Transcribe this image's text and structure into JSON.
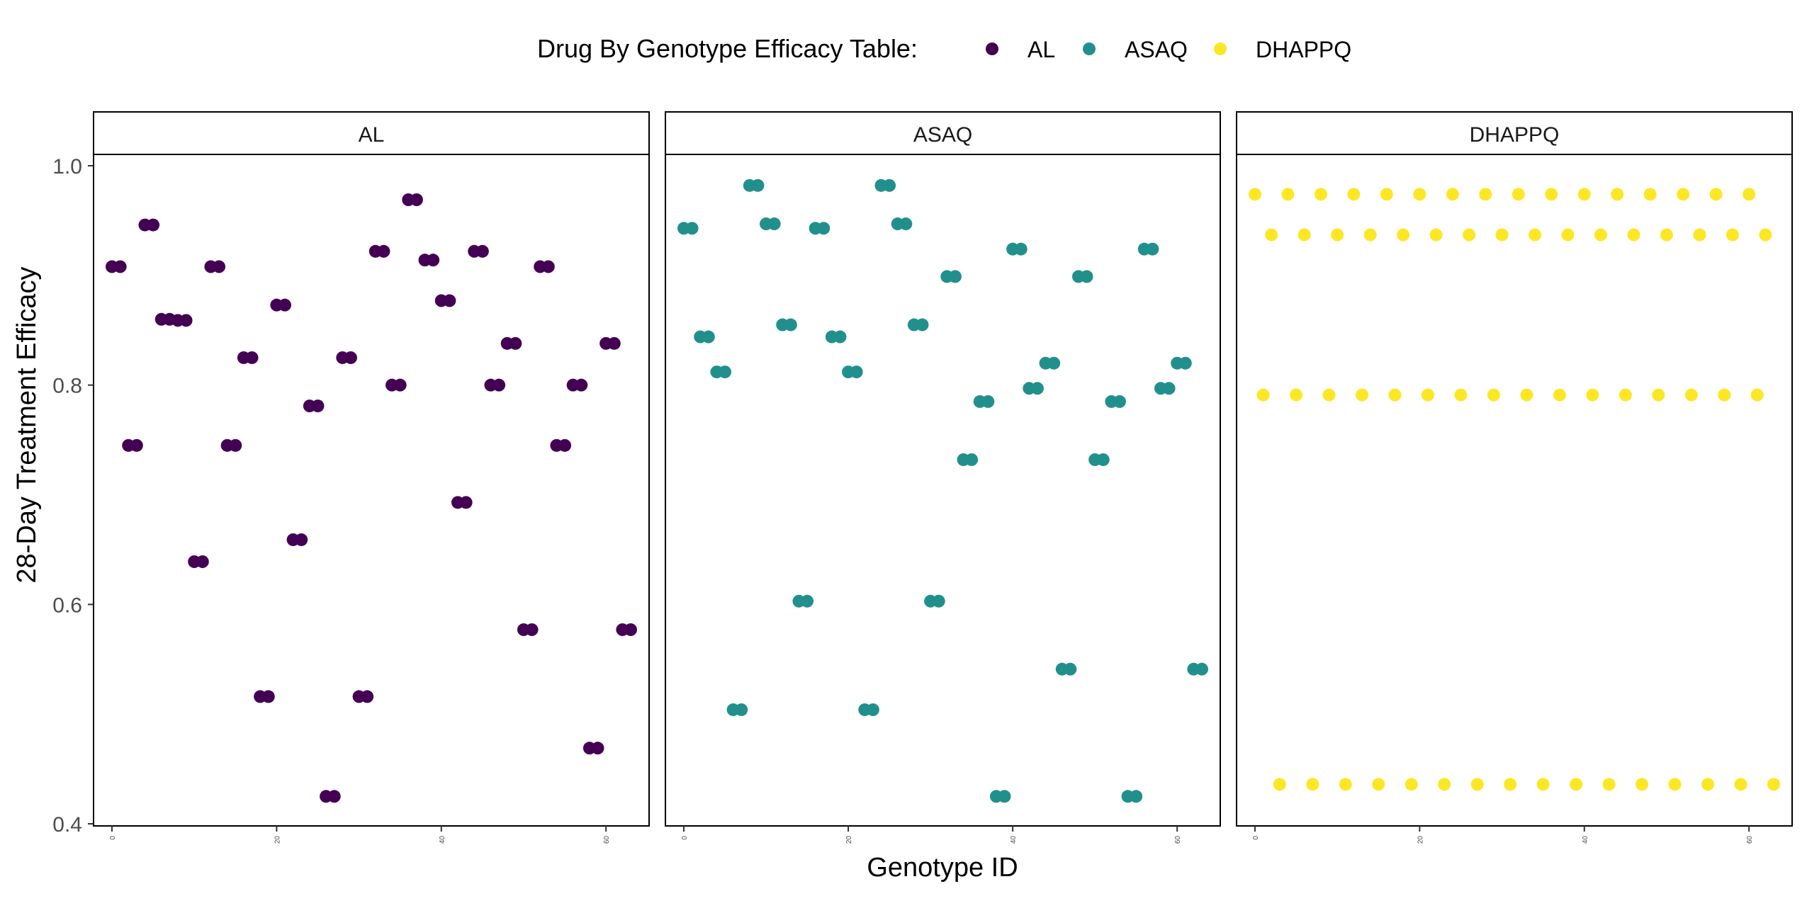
{
  "chart_data": {
    "type": "scatter",
    "title": "",
    "xlabel": "Genotype ID",
    "ylabel": "28-Day Treatment Efficacy",
    "legend": {
      "title": "Drug By Genotype Efficacy Table:",
      "position": "top",
      "entries": [
        {
          "name": "AL",
          "color": "#440154"
        },
        {
          "name": "ASAQ",
          "color": "#21908C"
        },
        {
          "name": "DHAPPQ",
          "color": "#FDE725"
        }
      ]
    },
    "xlim": [
      -2,
      66
    ],
    "ylim": [
      0.4,
      1.0
    ],
    "x_ticks": [
      0,
      20,
      40,
      60
    ],
    "y_ticks": [
      0.4,
      0.6,
      0.8,
      1.0
    ],
    "y_tick_labels": [
      "0.4",
      "0.6",
      "0.8",
      "1.0"
    ],
    "grid": false,
    "facets": [
      {
        "name": "AL",
        "color": "#440154",
        "x": [
          0,
          1,
          2,
          3,
          4,
          5,
          6,
          7,
          8,
          9,
          10,
          11,
          12,
          13,
          14,
          15,
          16,
          17,
          18,
          19,
          20,
          21,
          22,
          23,
          24,
          25,
          26,
          27,
          28,
          29,
          30,
          31,
          32,
          33,
          34,
          35,
          36,
          37,
          38,
          39,
          40,
          41,
          42,
          43,
          44,
          45,
          46,
          47,
          48,
          49,
          50,
          51,
          52,
          53,
          54,
          55,
          56,
          57,
          58,
          59,
          60,
          61,
          62,
          63
        ],
        "y": [
          0.908,
          0.908,
          0.745,
          0.745,
          0.946,
          0.946,
          0.86,
          0.86,
          0.859,
          0.859,
          0.639,
          0.639,
          0.908,
          0.908,
          0.745,
          0.745,
          0.825,
          0.825,
          0.516,
          0.516,
          0.873,
          0.873,
          0.659,
          0.659,
          0.781,
          0.781,
          0.425,
          0.425,
          0.825,
          0.825,
          0.516,
          0.516,
          0.922,
          0.922,
          0.8,
          0.8,
          0.969,
          0.969,
          0.914,
          0.914,
          0.877,
          0.877,
          0.693,
          0.693,
          0.922,
          0.922,
          0.8,
          0.8,
          0.838,
          0.838,
          0.577,
          0.577,
          0.908,
          0.908,
          0.745,
          0.745,
          0.8,
          0.8,
          0.469,
          0.469,
          0.838,
          0.838,
          0.577,
          0.577
        ]
      },
      {
        "name": "ASAQ",
        "color": "#21908C",
        "x": [
          0,
          1,
          2,
          3,
          4,
          5,
          6,
          7,
          8,
          9,
          10,
          11,
          12,
          13,
          14,
          15,
          16,
          17,
          18,
          19,
          20,
          21,
          22,
          23,
          24,
          25,
          26,
          27,
          28,
          29,
          30,
          31,
          32,
          33,
          34,
          35,
          36,
          37,
          38,
          39,
          40,
          41,
          42,
          43,
          44,
          45,
          46,
          47,
          48,
          49,
          50,
          51,
          52,
          53,
          54,
          55,
          56,
          57,
          58,
          59,
          60,
          61,
          62,
          63
        ],
        "y": [
          0.943,
          0.943,
          0.844,
          0.844,
          0.812,
          0.812,
          0.504,
          0.504,
          0.982,
          0.982,
          0.947,
          0.947,
          0.855,
          0.855,
          0.603,
          0.603,
          0.943,
          0.943,
          0.844,
          0.844,
          0.812,
          0.812,
          0.504,
          0.504,
          0.982,
          0.982,
          0.947,
          0.947,
          0.855,
          0.855,
          0.603,
          0.603,
          0.899,
          0.899,
          0.732,
          0.732,
          0.785,
          0.785,
          0.425,
          0.425,
          0.924,
          0.924,
          0.797,
          0.797,
          0.82,
          0.82,
          0.541,
          0.541,
          0.899,
          0.899,
          0.732,
          0.732,
          0.785,
          0.785,
          0.425,
          0.425,
          0.924,
          0.924,
          0.797,
          0.797,
          0.82,
          0.82,
          0.541,
          0.541
        ]
      },
      {
        "name": "DHAPPQ",
        "color": "#FDE725",
        "x": [
          0,
          1,
          2,
          3,
          4,
          5,
          6,
          7,
          8,
          9,
          10,
          11,
          12,
          13,
          14,
          15,
          16,
          17,
          18,
          19,
          20,
          21,
          22,
          23,
          24,
          25,
          26,
          27,
          28,
          29,
          30,
          31,
          32,
          33,
          34,
          35,
          36,
          37,
          38,
          39,
          40,
          41,
          42,
          43,
          44,
          45,
          46,
          47,
          48,
          49,
          50,
          51,
          52,
          53,
          54,
          55,
          56,
          57,
          58,
          59,
          60,
          61,
          62,
          63
        ],
        "y": [
          0.974,
          0.791,
          0.937,
          0.436,
          0.974,
          0.791,
          0.937,
          0.436,
          0.974,
          0.791,
          0.937,
          0.436,
          0.974,
          0.791,
          0.937,
          0.436,
          0.974,
          0.791,
          0.937,
          0.436,
          0.974,
          0.791,
          0.937,
          0.436,
          0.974,
          0.791,
          0.937,
          0.436,
          0.974,
          0.791,
          0.937,
          0.436,
          0.974,
          0.791,
          0.937,
          0.436,
          0.974,
          0.791,
          0.937,
          0.436,
          0.974,
          0.791,
          0.937,
          0.436,
          0.974,
          0.791,
          0.937,
          0.436,
          0.974,
          0.791,
          0.937,
          0.436,
          0.974,
          0.791,
          0.937,
          0.436,
          0.974,
          0.791,
          0.937,
          0.436,
          0.974,
          0.791,
          0.937,
          0.436
        ]
      }
    ]
  }
}
